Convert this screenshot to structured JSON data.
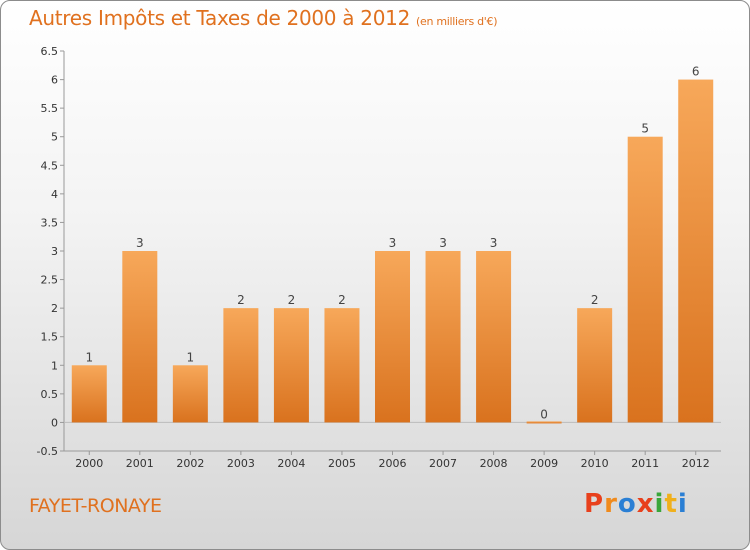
{
  "title": "Autres Impôts et Taxes de 2000 à 2012",
  "subtitle": "(en milliers d'€)",
  "city": "FAYET-RONAYE",
  "logo": {
    "letters": [
      "P",
      "r",
      "o",
      "x",
      "i",
      "t",
      "i"
    ],
    "colors": [
      "#e8401c",
      "#f08a1c",
      "#2a7fd4",
      "#e8401c",
      "#3aa63a",
      "#f0b01c",
      "#2a7fd4"
    ]
  },
  "colors": {
    "bar_top": "#f7a85a",
    "bar_bottom": "#d9721e",
    "accent": "#e0711f"
  },
  "chart_data": {
    "type": "bar",
    "title": "Autres Impôts et Taxes de 2000 à 2012",
    "subtitle": "(en milliers d'€)",
    "categories": [
      "2000",
      "2001",
      "2002",
      "2003",
      "2004",
      "2005",
      "2006",
      "2007",
      "2008",
      "2009",
      "2010",
      "2011",
      "2012"
    ],
    "values": [
      1,
      3,
      1,
      2,
      2,
      2,
      3,
      3,
      3,
      0,
      2,
      5,
      6
    ],
    "data_labels": [
      "1",
      "3",
      "1",
      "2",
      "2",
      "2",
      "3",
      "3",
      "3",
      "0",
      "2",
      "5",
      "6"
    ],
    "yticks": [
      "-0.5",
      "0",
      "0.5",
      "1",
      "1.5",
      "2",
      "2.5",
      "3",
      "3.5",
      "4",
      "4.5",
      "5",
      "5.5",
      "6",
      "6.5"
    ],
    "ylim": [
      -0.5,
      6.5
    ],
    "grid": false,
    "legend": "none"
  }
}
